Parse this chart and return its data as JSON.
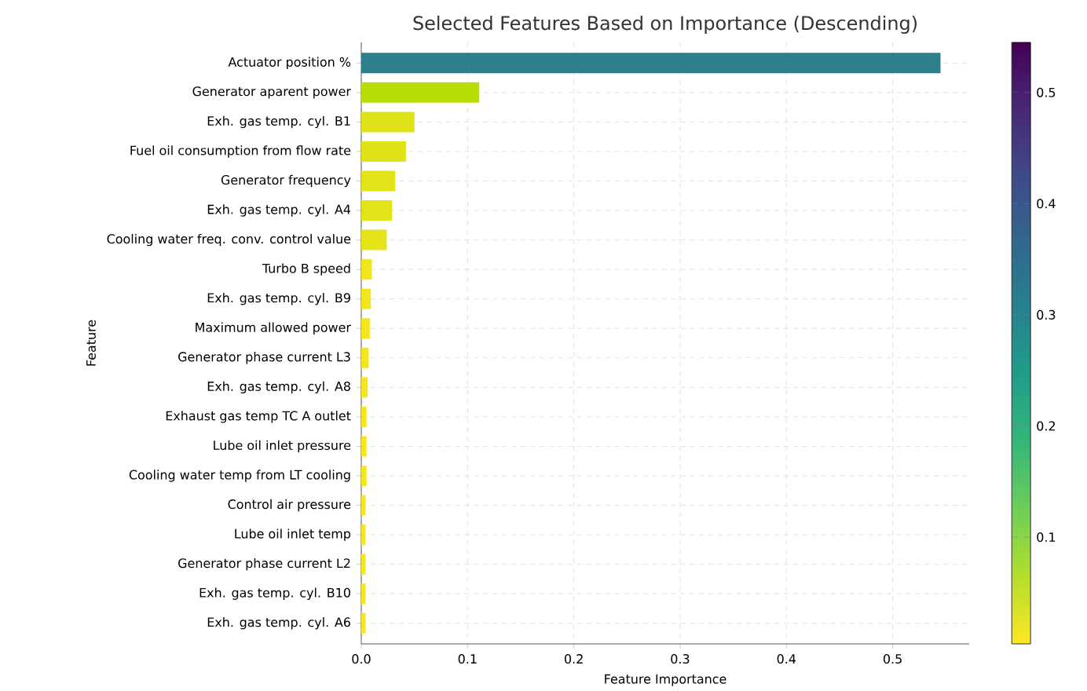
{
  "chart_data": {
    "type": "bar",
    "orientation": "horizontal",
    "title": "Selected Features Based on Importance (Descending)",
    "xlabel": "Feature Importance",
    "ylabel": "Feature",
    "clabel": null,
    "categories": [
      "Actuator position %",
      "Generator aparent power",
      "Exh. gas temp. cyl. B1",
      "Fuel oil consumption from flow rate",
      "Generator frequency",
      "Exh. gas temp. cyl. A4",
      "Cooling water freq. conv. control value",
      "Turbo B speed",
      "Exh. gas temp. cyl. B9",
      "Maximum allowed power",
      "Generator phase current L3",
      "Exh. gas temp. cyl. A8",
      "Exhaust gas temp TC A outlet",
      "Lube oil inlet pressure",
      "Cooling water temp from LT cooling",
      "Control air pressure",
      "Lube oil inlet temp",
      "Generator phase current L2",
      "Exh. gas temp. cyl. B10",
      "Exh. gas temp. cyl. A6"
    ],
    "values": [
      0.545,
      0.111,
      0.05,
      0.042,
      0.032,
      0.029,
      0.024,
      0.01,
      0.009,
      0.008,
      0.007,
      0.006,
      0.005,
      0.005,
      0.005,
      0.004,
      0.004,
      0.004,
      0.004,
      0.004
    ],
    "colors": [
      "#2d7f8c",
      "#b8de0a",
      "#dde318",
      "#dfe318",
      "#e2e418",
      "#e3e418",
      "#e5e419",
      "#f1e51d",
      "#f1e51d",
      "#f3e51e",
      "#f3e51e",
      "#f5e61f",
      "#f5e61f",
      "#f5e61f",
      "#f5e61f",
      "#f6e61f",
      "#f6e61f",
      "#f6e61f",
      "#f6e61f",
      "#f6e61f"
    ],
    "xlim": [
      0,
      0.572
    ],
    "xticks": [
      {
        "value": 0,
        "label": "0.0"
      },
      0.1,
      0.2,
      0.3,
      0.4,
      0.5
    ],
    "clim": [
      0.004,
      0.545
    ],
    "cticks": [
      0.1,
      0.2,
      0.3,
      0.4,
      0.5
    ],
    "grid": true
  }
}
